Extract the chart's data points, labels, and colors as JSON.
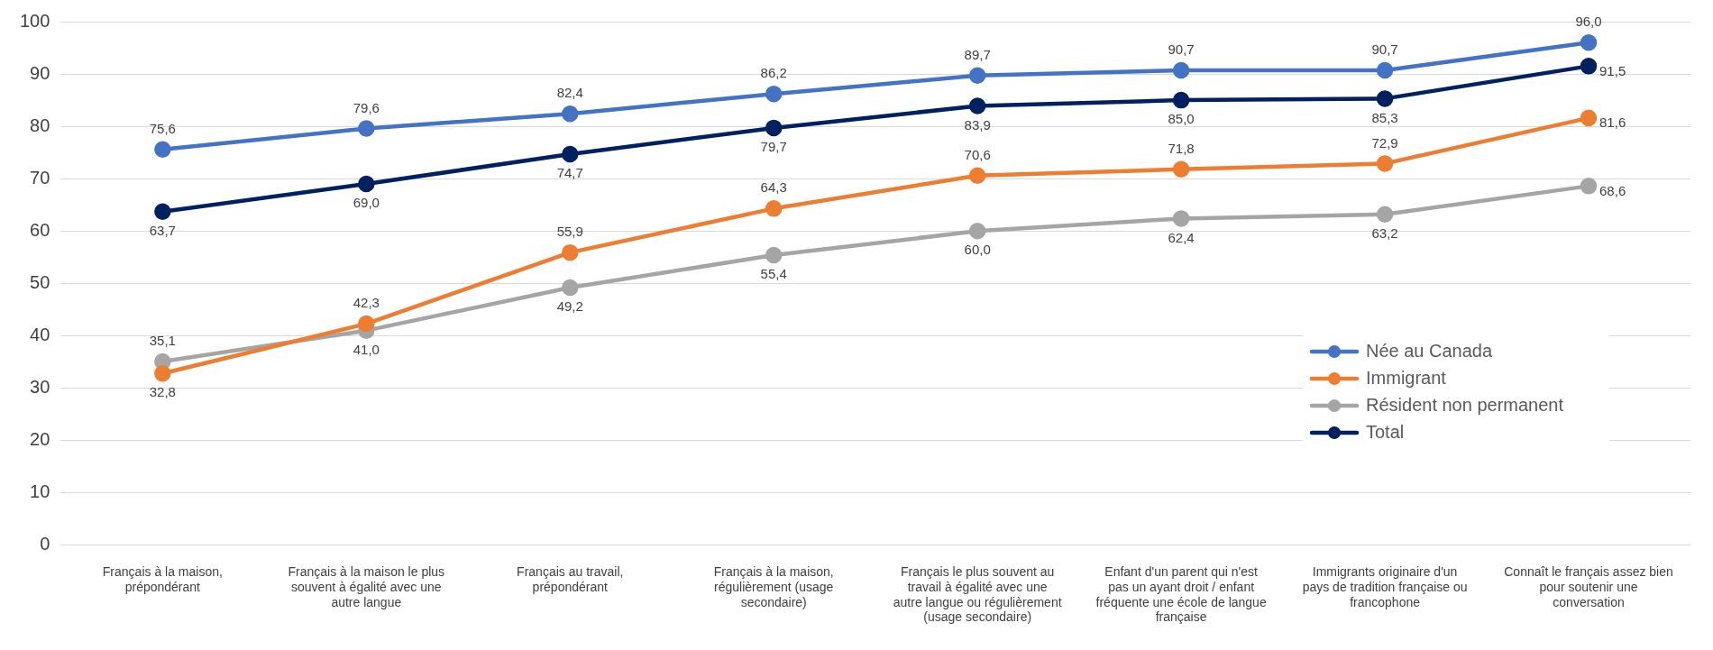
{
  "chart_data": {
    "type": "line",
    "categories": [
      "Français à la maison, prépondérant",
      "Français à la maison le plus souvent à égalité avec une autre langue",
      "Français au travail, prépondérant",
      "Français à la maison, régulièrement (usage secondaire)",
      "Français le plus souvent au travail à égalité avec une autre langue ou régulièrement (usage secondaire)",
      "Enfant d'un parent qui n'est pas un ayant droit / enfant fréquente une école de langue française",
      "Immigrants originaire d'un pays de tradition française ou francophone",
      "Connaît le français assez bien pour soutenir une conversation"
    ],
    "series": [
      {
        "name": "Née au Canada",
        "color": "#4472c4",
        "values": [
          75.6,
          79.6,
          82.4,
          86.2,
          89.7,
          90.7,
          90.7,
          96.0
        ],
        "value_labels": [
          "75,6",
          "79,6",
          "82,4",
          "86,2",
          "89,7",
          "90,7",
          "90,7",
          "96,0"
        ]
      },
      {
        "name": "Immigrant",
        "color": "#ed7d31",
        "values": [
          32.8,
          42.3,
          55.9,
          64.3,
          70.6,
          71.8,
          72.9,
          81.6
        ],
        "value_labels": [
          "32,8",
          "42,3",
          "55,9",
          "64,3",
          "70,6",
          "71,8",
          "72,9",
          "81,6"
        ]
      },
      {
        "name": "Résident non permanent",
        "color": "#a5a5a5",
        "values": [
          35.1,
          41.0,
          49.2,
          55.4,
          60.0,
          62.4,
          63.2,
          68.6
        ],
        "value_labels": [
          "35,1",
          "41,0",
          "49,2",
          "55,4",
          "60,0",
          "62,4",
          "63,2",
          "68,6"
        ]
      },
      {
        "name": "Total",
        "color": "#002060",
        "values": [
          63.7,
          69.0,
          74.7,
          79.7,
          83.9,
          85.0,
          85.3,
          91.5
        ],
        "value_labels": [
          "63,7",
          "69,0",
          "74,7",
          "79,7",
          "83,9",
          "85,0",
          "85,3",
          "91,5"
        ]
      }
    ],
    "ylim": [
      0,
      100
    ],
    "yticks": [
      0,
      10,
      20,
      30,
      40,
      50,
      60,
      70,
      80,
      90,
      100
    ],
    "grid": "y",
    "legend": "right",
    "marker": "circle",
    "line_style": "solid"
  }
}
